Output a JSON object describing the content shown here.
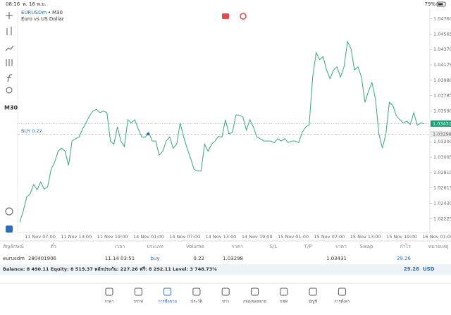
{
  "status": {
    "time": "08:16",
    "date": "พ. 16 พ.ย.",
    "battery": "79%"
  },
  "chart": {
    "type": "line",
    "symbol": "EURUSDm",
    "timeframe": "M30",
    "description": "Euro vs US Dollar",
    "buy_label": "BUY 0.22",
    "color": "#3aa57a",
    "bid": 1.03431,
    "open_price": 1.03298,
    "categories": [
      "11 Nov 07:00",
      "11 Nov 13:00",
      "11 Nov 19:00",
      "14 Nov 01:00",
      "14 Nov 07:00",
      "14 Nov 13:00",
      "14 Nov 19:00",
      "15 Nov 01:00",
      "15 Nov 07:00",
      "15 Nov 13:00",
      "15 Nov 19:00",
      "16 Nov 01:00"
    ],
    "ylim": [
      1.0205,
      1.0489
    ],
    "yticks": [
      {
        "value": 1.0476,
        "label": "1.04760"
      },
      1.04565,
      {
        "value": 1.0437,
        "label": "1.04370"
      },
      1.04175,
      {
        "value": 1.0398,
        "label": "1.03980"
      },
      1.03785,
      {
        "value": 1.0359,
        "label": "1.03590"
      },
      {
        "value": 1.032,
        "label": "1.03200"
      },
      1.03005,
      {
        "value": 1.0281,
        "label": "1.02810"
      },
      1.02615,
      {
        "value": 1.0242,
        "label": "1.02420"
      },
      1.02225
    ],
    "values": [
      1.0218,
      1.0232,
      1.025,
      1.0254,
      1.0266,
      1.0259,
      1.0269,
      1.026,
      1.0263,
      1.0285,
      1.0294,
      1.0308,
      1.0312,
      1.0308,
      1.029,
      1.0321,
      1.0324,
      1.0326,
      1.0336,
      1.0344,
      1.0353,
      1.0359,
      1.0361,
      1.0357,
      1.0359,
      1.0357,
      1.0321,
      1.0317,
      1.0339,
      1.0321,
      1.0314,
      1.0348,
      1.0344,
      1.0348,
      1.0336,
      1.0326,
      1.0326,
      1.0332,
      1.0321,
      1.0321,
      1.0303,
      1.0308,
      1.0321,
      1.0326,
      1.0312,
      1.0317,
      1.0344,
      1.0326,
      1.0312,
      1.0299,
      1.0285,
      1.0283,
      1.0283,
      1.0317,
      1.0308,
      1.0317,
      1.0321,
      1.0327,
      1.0326,
      1.0348,
      1.033,
      1.0332,
      1.0354,
      1.0354,
      1.0351,
      1.0335,
      1.0348,
      1.0339,
      1.0326,
      1.0324,
      1.0321,
      1.0321,
      1.0321,
      1.0319,
      1.0324,
      1.0321,
      1.0324,
      1.0319,
      1.0321,
      1.0321,
      1.0319,
      1.0332,
      1.0339,
      1.0341,
      1.0402,
      1.0433,
      1.0424,
      1.0428,
      1.0411,
      1.04,
      1.0411,
      1.0415,
      1.0402,
      1.0415,
      1.0447,
      1.0438,
      1.0411,
      1.0415,
      1.0402,
      1.037,
      1.0384,
      1.0395,
      1.0375,
      1.033,
      1.0312,
      1.033,
      1.037,
      1.0366,
      1.0353,
      1.0348,
      1.0344,
      1.0346,
      1.0342,
      1.0357,
      1.0341,
      1.0344,
      1.0343
    ]
  },
  "table": {
    "headers": [
      "สัญลักษณ์",
      "ตั๋ว",
      "เวลา",
      "ประเภท",
      "Volume",
      "ราคา",
      "S/L",
      "T/P",
      "ราคา",
      "Swap",
      "กำไร",
      "หมายเหตุ"
    ],
    "row": [
      "eurusdm",
      "280401906",
      "11.14 03:51",
      "buy",
      "0.22",
      "1.03298",
      "",
      "",
      "1.03431",
      "",
      "29.26",
      ""
    ],
    "summary": "Balance: 8 490.11 Equity: 8 519.37 หลักประกัน: 227.26 ฟรี: 8 292.11 Level: 3 748.73%",
    "total": "29.26",
    "currency": "USD"
  },
  "nav": [
    "ราคา",
    "กราฟ",
    "การซื้อขาย",
    "ประวัติ",
    "ข่าว",
    "กล่องจดหมาย",
    "แชท",
    "บัญชี",
    "การตั้งค่า"
  ]
}
